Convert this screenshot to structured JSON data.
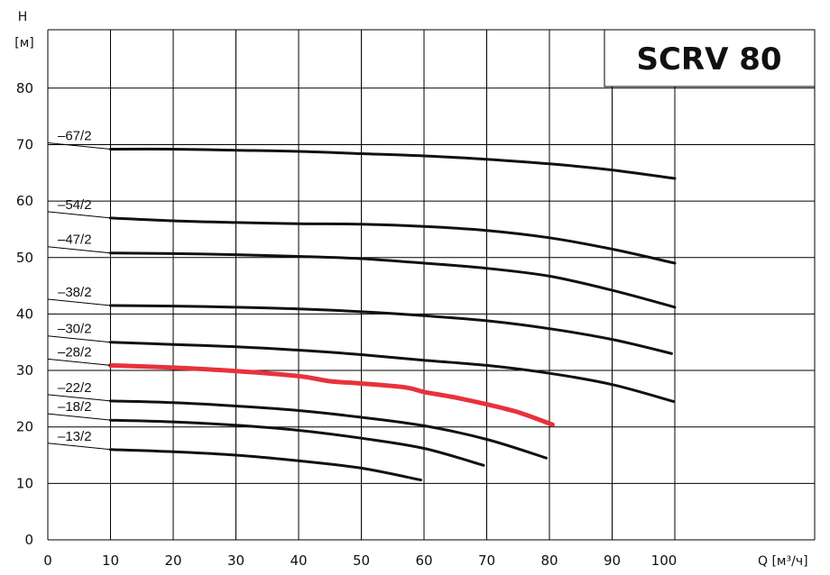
{
  "chart_data": {
    "type": "line",
    "title": "SCRV 80",
    "xlabel": "Q [м³/ч]",
    "ylabel_top": "H",
    "ylabel_unit": "[м]",
    "xlim": [
      0,
      100
    ],
    "ylim": [
      0,
      90
    ],
    "xticks": [
      0,
      10,
      20,
      30,
      40,
      50,
      60,
      70,
      80,
      90,
      100
    ],
    "xtick_labels": [
      "0",
      "10",
      "20",
      "30",
      "40",
      "50",
      "60",
      "70",
      "80",
      "90",
      "100"
    ],
    "yticks": [
      0,
      10,
      20,
      30,
      40,
      50,
      60,
      70,
      80
    ],
    "ytick_labels": [
      "0",
      "10",
      "20",
      "30",
      "40",
      "50",
      "60",
      "70",
      "80"
    ],
    "grid": true,
    "colors": {
      "curve": "#111111",
      "highlight": "#e8323c",
      "grid": "#000000"
    },
    "series": [
      {
        "name": "–67/2",
        "highlight": false,
        "x": [
          10,
          20,
          30,
          40,
          50,
          60,
          70,
          80,
          90,
          100
        ],
        "y": [
          69.2,
          69.2,
          69.0,
          68.8,
          68.4,
          68.0,
          67.4,
          66.6,
          65.5,
          64.0
        ]
      },
      {
        "name": "–54/2",
        "highlight": false,
        "x": [
          10,
          20,
          30,
          40,
          50,
          60,
          70,
          80,
          90,
          100
        ],
        "y": [
          57.0,
          56.5,
          56.2,
          56.0,
          55.9,
          55.5,
          54.8,
          53.5,
          51.5,
          49.0
        ]
      },
      {
        "name": "–47/2",
        "highlight": false,
        "x": [
          10,
          20,
          30,
          40,
          50,
          60,
          70,
          80,
          90,
          100
        ],
        "y": [
          50.8,
          50.7,
          50.5,
          50.2,
          49.8,
          49.0,
          48.1,
          46.7,
          44.2,
          41.2
        ]
      },
      {
        "name": "–38/2",
        "highlight": false,
        "x": [
          10,
          20,
          30,
          40,
          50,
          60,
          70,
          80,
          90,
          99.5
        ],
        "y": [
          41.5,
          41.4,
          41.2,
          40.9,
          40.4,
          39.7,
          38.8,
          37.4,
          35.5,
          33.0
        ]
      },
      {
        "name": "–30/2",
        "highlight": false,
        "x": [
          10,
          20,
          30,
          40,
          50,
          60,
          70,
          80,
          90,
          99.8
        ],
        "y": [
          35.0,
          34.6,
          34.2,
          33.6,
          32.8,
          31.8,
          30.9,
          29.5,
          27.5,
          24.5
        ]
      },
      {
        "name": "–28/2",
        "highlight": true,
        "x": [
          10,
          20,
          30,
          40,
          45,
          50,
          57,
          60,
          65,
          70,
          75,
          80.5
        ],
        "y": [
          30.9,
          30.5,
          29.9,
          29.0,
          28.1,
          27.7,
          27.0,
          26.2,
          25.2,
          24.0,
          22.6,
          20.4
        ]
      },
      {
        "name": "–22/2",
        "highlight": false,
        "x": [
          10,
          20,
          30,
          40,
          50,
          60,
          70,
          79.5
        ],
        "y": [
          24.6,
          24.3,
          23.7,
          22.9,
          21.7,
          20.2,
          17.8,
          14.5
        ]
      },
      {
        "name": "–18/2",
        "highlight": false,
        "x": [
          10,
          20,
          30,
          40,
          50,
          60,
          69.5
        ],
        "y": [
          21.2,
          20.9,
          20.3,
          19.4,
          18.0,
          16.2,
          13.2
        ]
      },
      {
        "name": "–13/2",
        "highlight": false,
        "x": [
          10,
          20,
          30,
          40,
          50,
          59.5
        ],
        "y": [
          16.0,
          15.6,
          15.0,
          14.0,
          12.7,
          10.6
        ]
      }
    ]
  }
}
